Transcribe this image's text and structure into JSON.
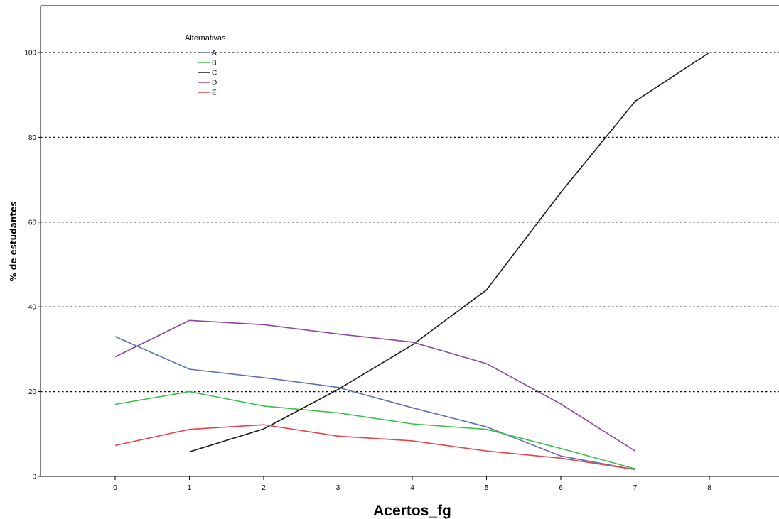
{
  "chart_data": {
    "type": "line",
    "xlabel": "Acertos_fg",
    "ylabel": "% de estudantes",
    "x_ticks": [
      "0",
      "1",
      "2",
      "3",
      "4",
      "5",
      "6",
      "7",
      "8"
    ],
    "y_ticks": [
      "0",
      "20",
      "40",
      "60",
      "80",
      "100"
    ],
    "xlim": [
      -1,
      9
    ],
    "ylim": [
      0,
      112
    ],
    "grid": "horizontal-dotted",
    "legend": {
      "title": "Alternativas",
      "placement": "top-left"
    },
    "series": [
      {
        "name": "A",
        "color": "#5b6fb5",
        "x": [
          0,
          1,
          2,
          3,
          4,
          5,
          6,
          7
        ],
        "y": [
          33,
          25.3,
          23.3,
          21,
          16.2,
          11.7,
          4.8,
          1.6
        ]
      },
      {
        "name": "B",
        "color": "#3cbf4a",
        "x": [
          0,
          1,
          2,
          3,
          4,
          5,
          6,
          7
        ],
        "y": [
          17,
          20,
          16.6,
          15,
          12.4,
          11.1,
          6.6,
          1.8
        ]
      },
      {
        "name": "C",
        "color": "#1a1a1a",
        "x": [
          1,
          2,
          3,
          4,
          5,
          6,
          7,
          8
        ],
        "y": [
          5.8,
          11.2,
          20.5,
          31,
          44,
          67,
          88.5,
          100
        ]
      },
      {
        "name": "D",
        "color": "#8e46a0",
        "x": [
          0,
          1,
          2,
          3,
          4,
          5,
          6,
          7
        ],
        "y": [
          28.2,
          36.8,
          35.8,
          33.6,
          31.7,
          26.6,
          17.1,
          6
        ]
      },
      {
        "name": "E",
        "color": "#e8424a",
        "x": [
          0,
          1,
          2,
          3,
          4,
          5,
          6,
          7
        ],
        "y": [
          7.3,
          11.1,
          12.2,
          9.5,
          8.4,
          6,
          4.3,
          1.6
        ]
      }
    ]
  }
}
